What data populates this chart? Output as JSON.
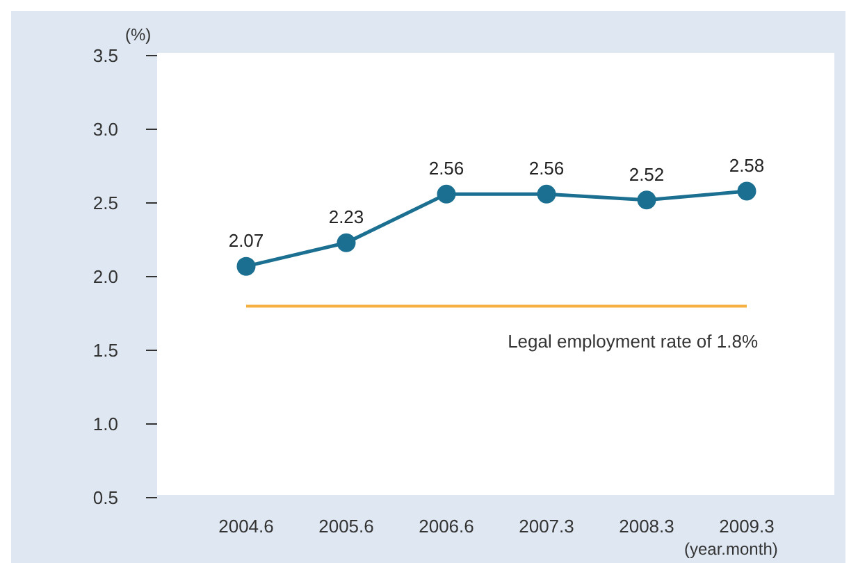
{
  "chart_data": {
    "type": "line",
    "ylabel": "(%)",
    "xlabel": "(year.month)",
    "categories": [
      "2004.6",
      "2005.6",
      "2006.6",
      "2007.3",
      "2008.3",
      "2009.3"
    ],
    "series": [
      {
        "color": "#1b6f91",
        "values": [
          2.07,
          2.23,
          2.56,
          2.56,
          2.52,
          2.58
        ]
      }
    ],
    "ylim": [
      0.5,
      3.5
    ],
    "yticks": [
      {
        "value": 0.5,
        "label": "0.5"
      },
      {
        "value": 1,
        "label": "1.0"
      },
      {
        "value": 1.5,
        "label": "1.5"
      },
      {
        "value": 2,
        "label": "2.0"
      },
      {
        "value": 2.5,
        "label": "2.5"
      },
      {
        "value": 3,
        "label": "3.0"
      },
      {
        "value": 3.5,
        "label": "3.5"
      }
    ],
    "ref_lines": [
      {
        "axis": "y",
        "value": 1.8,
        "label": "Legal employment rate of 1.8%",
        "color": "#f5b041"
      }
    ],
    "data_labels": true,
    "marker": "circle",
    "grid": false,
    "legend": false
  }
}
